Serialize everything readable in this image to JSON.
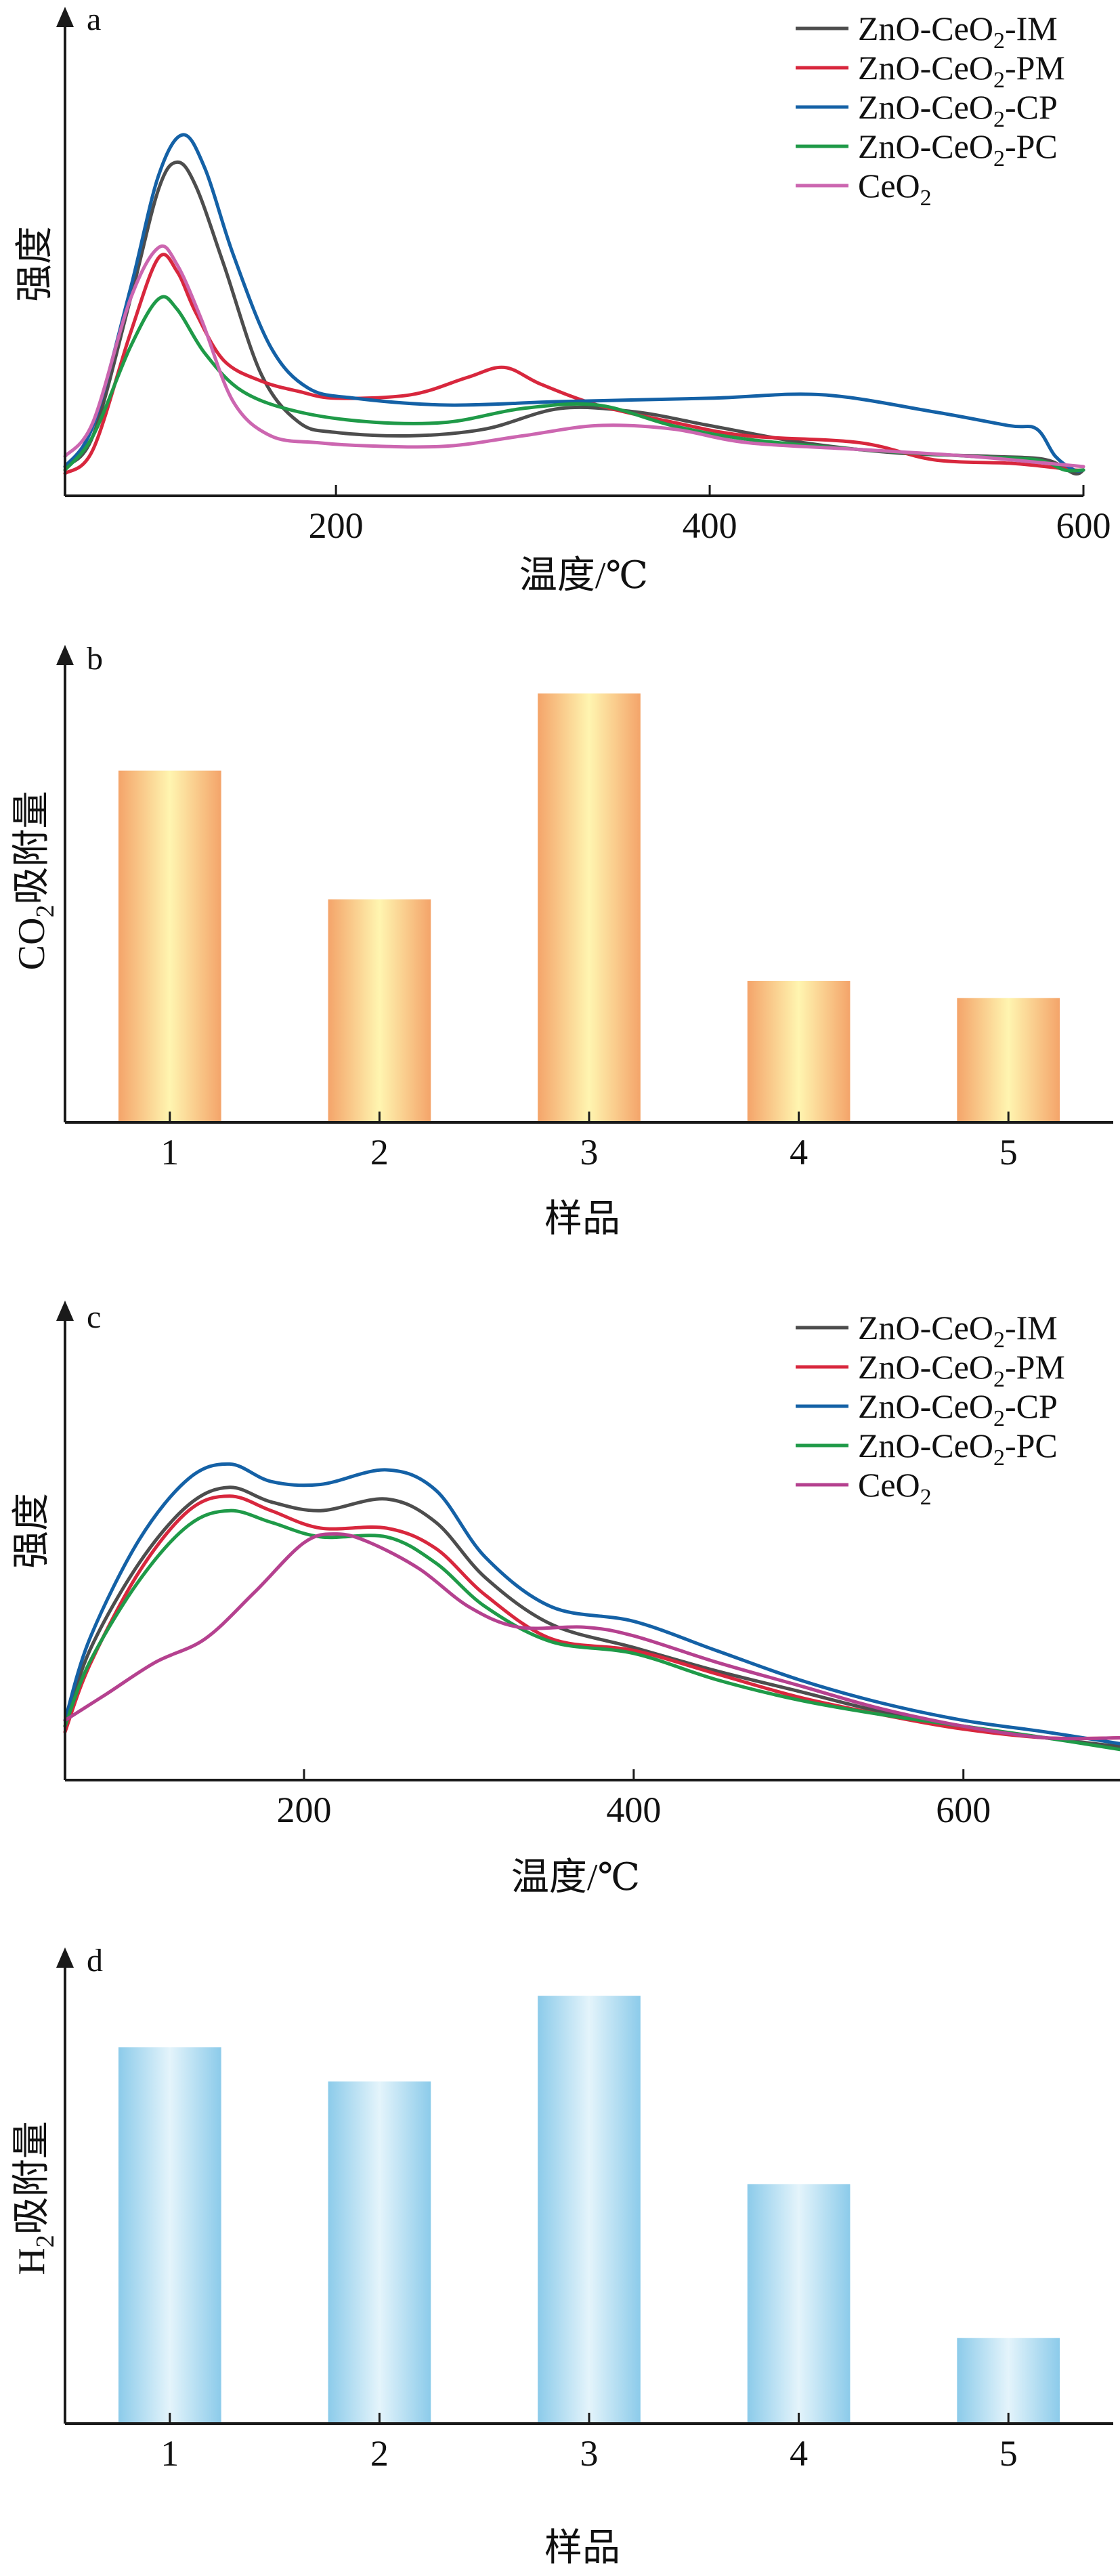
{
  "chart_data": [
    {
      "type": "line",
      "panel": "a",
      "xlabel": "温度/℃",
      "ylabel": "强度",
      "xlim": [
        55,
        600
      ],
      "xticks": [
        200,
        400,
        600
      ],
      "grid": false,
      "legend_position": "top-right",
      "series": [
        {
          "name": "ZnO-CeO₂-IM",
          "color": "#4d4d4d",
          "x": [
            55,
            70,
            90,
            105,
            115,
            125,
            140,
            160,
            180,
            200,
            240,
            280,
            320,
            360,
            400,
            450,
            500,
            550,
            580,
            595,
            600
          ],
          "y": [
            0.03,
            0.12,
            0.52,
            0.84,
            0.92,
            0.85,
            0.62,
            0.3,
            0.16,
            0.13,
            0.12,
            0.14,
            0.2,
            0.19,
            0.15,
            0.1,
            0.07,
            0.06,
            0.05,
            0.01,
            0.02
          ]
        },
        {
          "name": "ZnO-CeO₂-PM",
          "color": "#d8273d",
          "x": [
            55,
            70,
            90,
            105,
            115,
            125,
            140,
            160,
            180,
            200,
            240,
            270,
            290,
            310,
            340,
            380,
            420,
            480,
            520,
            560,
            580,
            595,
            600
          ],
          "y": [
            0.01,
            0.08,
            0.42,
            0.64,
            0.6,
            0.48,
            0.34,
            0.28,
            0.25,
            0.23,
            0.24,
            0.29,
            0.32,
            0.27,
            0.21,
            0.16,
            0.12,
            0.1,
            0.05,
            0.04,
            0.03,
            0.02,
            0.02
          ]
        },
        {
          "name": "ZnO-CeO₂-CP",
          "color": "#1461a6",
          "x": [
            55,
            70,
            90,
            105,
            118,
            130,
            145,
            165,
            185,
            210,
            260,
            320,
            400,
            460,
            520,
            560,
            575,
            585,
            595,
            600
          ],
          "y": [
            0.03,
            0.15,
            0.55,
            0.88,
            1.0,
            0.9,
            0.65,
            0.38,
            0.26,
            0.23,
            0.21,
            0.22,
            0.23,
            0.24,
            0.19,
            0.15,
            0.14,
            0.06,
            0.02,
            0.02
          ]
        },
        {
          "name": "ZnO-CeO₂-PC",
          "color": "#1f9a48",
          "x": [
            55,
            70,
            90,
            105,
            115,
            130,
            150,
            180,
            220,
            260,
            300,
            340,
            380,
            420,
            480,
            540,
            575,
            590,
            600
          ],
          "y": [
            0.02,
            0.12,
            0.38,
            0.52,
            0.49,
            0.36,
            0.25,
            0.19,
            0.16,
            0.16,
            0.2,
            0.21,
            0.15,
            0.11,
            0.08,
            0.06,
            0.05,
            0.02,
            0.02
          ]
        },
        {
          "name": "CeO₂",
          "color": "#cc66b0",
          "x": [
            55,
            70,
            90,
            105,
            115,
            128,
            145,
            165,
            190,
            220,
            260,
            300,
            340,
            380,
            420,
            480,
            540,
            580,
            600
          ],
          "y": [
            0.06,
            0.16,
            0.52,
            0.67,
            0.62,
            0.46,
            0.22,
            0.12,
            0.1,
            0.09,
            0.09,
            0.12,
            0.15,
            0.14,
            0.1,
            0.08,
            0.06,
            0.04,
            0.03
          ]
        }
      ]
    },
    {
      "type": "bar",
      "panel": "b",
      "xlabel": "样品",
      "ylabel_main": "CO",
      "ylabel_sub": "2",
      "ylabel_tail": "吸附量",
      "categories": [
        "1",
        "2",
        "3",
        "4",
        "5"
      ],
      "values": [
        0.82,
        0.52,
        1.0,
        0.33,
        0.29
      ],
      "ylim": [
        0,
        1.05
      ],
      "bar_colors": {
        "edge": "#f4a46a",
        "center": "#fff5b0"
      },
      "grid": false
    },
    {
      "type": "line",
      "panel": "c",
      "xlabel": "温度/℃",
      "ylabel": "强度",
      "xlim": [
        55,
        695
      ],
      "xticks": [
        200,
        400,
        600
      ],
      "grid": false,
      "legend_position": "top-right",
      "series": [
        {
          "name": "ZnO-CeO₂-IM",
          "color": "#4d4d4d",
          "x": [
            55,
            70,
            100,
            130,
            155,
            180,
            210,
            250,
            280,
            310,
            350,
            400,
            450,
            500,
            550,
            600,
            650,
            695
          ],
          "y": [
            0.12,
            0.38,
            0.68,
            0.88,
            0.94,
            0.89,
            0.86,
            0.9,
            0.82,
            0.63,
            0.47,
            0.39,
            0.31,
            0.24,
            0.17,
            0.12,
            0.08,
            0.05
          ]
        },
        {
          "name": "ZnO-CeO₂-PM",
          "color": "#d8273d",
          "x": [
            55,
            70,
            100,
            130,
            155,
            180,
            210,
            250,
            280,
            310,
            350,
            400,
            450,
            500,
            550,
            600,
            650,
            695
          ],
          "y": [
            0.1,
            0.33,
            0.65,
            0.86,
            0.91,
            0.86,
            0.8,
            0.8,
            0.73,
            0.57,
            0.42,
            0.38,
            0.3,
            0.22,
            0.16,
            0.11,
            0.08,
            0.08
          ]
        },
        {
          "name": "ZnO-CeO₂-CP",
          "color": "#1461a6",
          "x": [
            55,
            70,
            100,
            130,
            155,
            180,
            210,
            250,
            280,
            310,
            350,
            400,
            450,
            500,
            550,
            600,
            650,
            695
          ],
          "y": [
            0.14,
            0.42,
            0.76,
            0.97,
            1.02,
            0.96,
            0.95,
            1.0,
            0.93,
            0.7,
            0.53,
            0.48,
            0.38,
            0.28,
            0.2,
            0.14,
            0.1,
            0.06
          ]
        },
        {
          "name": "ZnO-CeO₂-PC",
          "color": "#1f9a48",
          "x": [
            55,
            70,
            100,
            130,
            155,
            180,
            210,
            250,
            280,
            310,
            350,
            400,
            450,
            500,
            550,
            600,
            650,
            695
          ],
          "y": [
            0.12,
            0.34,
            0.62,
            0.81,
            0.86,
            0.82,
            0.77,
            0.77,
            0.68,
            0.53,
            0.41,
            0.37,
            0.28,
            0.21,
            0.16,
            0.12,
            0.08,
            0.04
          ]
        },
        {
          "name": "CeO₂",
          "color": "#b5418f",
          "x": [
            55,
            80,
            110,
            140,
            170,
            200,
            220,
            240,
            270,
            300,
            330,
            370,
            400,
            450,
            500,
            550,
            600,
            650,
            695
          ],
          "y": [
            0.14,
            0.23,
            0.34,
            0.42,
            0.58,
            0.75,
            0.78,
            0.75,
            0.66,
            0.53,
            0.46,
            0.46,
            0.43,
            0.34,
            0.26,
            0.18,
            0.12,
            0.08,
            0.08
          ]
        }
      ]
    },
    {
      "type": "bar",
      "panel": "d",
      "xlabel": "样品",
      "ylabel_main": "H",
      "ylabel_sub": "2",
      "ylabel_tail": "吸附量",
      "categories": [
        "1",
        "2",
        "3",
        "4",
        "5"
      ],
      "values": [
        0.88,
        0.8,
        1.0,
        0.56,
        0.2
      ],
      "ylim": [
        0,
        1.05
      ],
      "bar_colors": {
        "edge": "#8ccbea",
        "center": "#e4f4fb"
      },
      "grid": false
    }
  ]
}
